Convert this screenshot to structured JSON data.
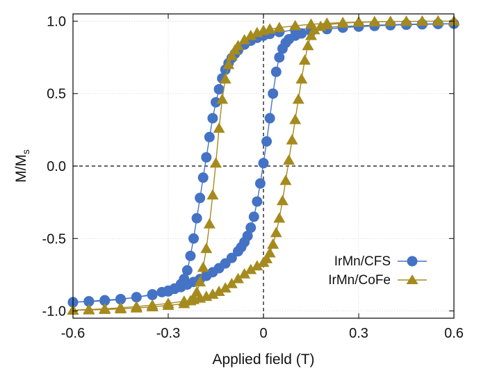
{
  "chart_data": {
    "type": "scatter",
    "xlabel": "Applied field (T)",
    "ylabel": "M/M",
    "ylabel_subscript": "s",
    "xlim": [
      -0.6,
      0.6
    ],
    "ylim": [
      -1.05,
      1.05
    ],
    "x_ticks": [
      {
        "value": -0.6,
        "label": "-0.6"
      },
      {
        "value": -0.3,
        "label": "-0.3"
      },
      {
        "value": 0.0,
        "label": "0"
      },
      {
        "value": 0.3,
        "label": "0.3"
      },
      {
        "value": 0.6,
        "label": "0.6"
      }
    ],
    "y_ticks": [
      {
        "value": -1.0,
        "label": "-1.0"
      },
      {
        "value": -0.5,
        "label": "-0.5"
      },
      {
        "value": 0.0,
        "label": "0.0"
      },
      {
        "value": 0.5,
        "label": "0.5"
      },
      {
        "value": 1.0,
        "label": "1.0"
      }
    ],
    "grid": true,
    "zero_lines": true,
    "legend_position": "bottom-right",
    "series": [
      {
        "name": "IrMn/CFS",
        "color": "#4472C4",
        "marker": "circle",
        "points": [
          [
            -0.6,
            -0.94
          ],
          [
            -0.55,
            -0.935
          ],
          [
            -0.5,
            -0.93
          ],
          [
            -0.45,
            -0.92
          ],
          [
            -0.4,
            -0.905
          ],
          [
            -0.35,
            -0.885
          ],
          [
            -0.32,
            -0.87
          ],
          [
            -0.3,
            -0.86
          ],
          [
            -0.28,
            -0.848
          ],
          [
            -0.26,
            -0.835
          ],
          [
            -0.24,
            -0.818
          ],
          [
            -0.22,
            -0.8
          ],
          [
            -0.2,
            -0.78
          ],
          [
            -0.18,
            -0.758
          ],
          [
            -0.16,
            -0.733
          ],
          [
            -0.14,
            -0.705
          ],
          [
            -0.12,
            -0.672
          ],
          [
            -0.1,
            -0.634
          ],
          [
            -0.08,
            -0.588
          ],
          [
            -0.07,
            -0.56
          ],
          [
            -0.06,
            -0.525
          ],
          [
            -0.05,
            -0.482
          ],
          [
            -0.04,
            -0.425
          ],
          [
            -0.03,
            -0.35
          ],
          [
            -0.02,
            -0.245
          ],
          [
            -0.01,
            -0.12
          ],
          [
            0.0,
            0.02
          ],
          [
            0.01,
            0.17
          ],
          [
            0.02,
            0.33
          ],
          [
            0.03,
            0.5
          ],
          [
            0.04,
            0.65
          ],
          [
            0.05,
            0.75
          ],
          [
            0.06,
            0.81
          ],
          [
            0.07,
            0.85
          ],
          [
            0.08,
            0.875
          ],
          [
            0.1,
            0.9
          ],
          [
            0.12,
            0.915
          ],
          [
            0.15,
            0.93
          ],
          [
            0.2,
            0.945
          ],
          [
            0.25,
            0.955
          ],
          [
            0.3,
            0.962
          ],
          [
            0.35,
            0.967
          ],
          [
            0.4,
            0.972
          ],
          [
            0.45,
            0.975
          ],
          [
            0.5,
            0.978
          ],
          [
            0.55,
            0.98
          ],
          [
            0.6,
            0.982
          ],
          [
            0.55,
            0.982
          ],
          [
            0.5,
            0.98
          ],
          [
            0.45,
            0.978
          ],
          [
            0.4,
            0.975
          ],
          [
            0.35,
            0.972
          ],
          [
            0.3,
            0.968
          ],
          [
            0.25,
            0.963
          ],
          [
            0.2,
            0.957
          ],
          [
            0.15,
            0.95
          ],
          [
            0.1,
            0.94
          ],
          [
            0.05,
            0.925
          ],
          [
            0.02,
            0.912
          ],
          [
            0.0,
            0.9
          ],
          [
            -0.02,
            0.885
          ],
          [
            -0.04,
            0.865
          ],
          [
            -0.06,
            0.838
          ],
          [
            -0.08,
            0.8
          ],
          [
            -0.09,
            0.775
          ],
          [
            -0.1,
            0.745
          ],
          [
            -0.11,
            0.71
          ],
          [
            -0.12,
            0.665
          ],
          [
            -0.13,
            0.605
          ],
          [
            -0.14,
            0.53
          ],
          [
            -0.15,
            0.44
          ],
          [
            -0.16,
            0.33
          ],
          [
            -0.17,
            0.2
          ],
          [
            -0.18,
            0.06
          ],
          [
            -0.19,
            -0.08
          ],
          [
            -0.2,
            -0.22
          ],
          [
            -0.21,
            -0.36
          ],
          [
            -0.22,
            -0.5
          ],
          [
            -0.23,
            -0.62
          ],
          [
            -0.24,
            -0.72
          ],
          [
            -0.25,
            -0.78
          ],
          [
            -0.26,
            -0.815
          ],
          [
            -0.28,
            -0.845
          ],
          [
            -0.3,
            -0.865
          ],
          [
            -0.35,
            -0.89
          ],
          [
            -0.4,
            -0.905
          ],
          [
            -0.45,
            -0.918
          ],
          [
            -0.5,
            -0.926
          ],
          [
            -0.55,
            -0.933
          ],
          [
            -0.6,
            -0.94
          ]
        ]
      },
      {
        "name": "IrMn/CoFe",
        "color": "#A58A1E",
        "marker": "triangle",
        "points": [
          [
            -0.6,
            -0.995
          ],
          [
            -0.55,
            -0.99
          ],
          [
            -0.5,
            -0.985
          ],
          [
            -0.45,
            -0.978
          ],
          [
            -0.4,
            -0.97
          ],
          [
            -0.35,
            -0.96
          ],
          [
            -0.3,
            -0.948
          ],
          [
            -0.25,
            -0.933
          ],
          [
            -0.22,
            -0.922
          ],
          [
            -0.2,
            -0.912
          ],
          [
            -0.18,
            -0.9
          ],
          [
            -0.16,
            -0.885
          ],
          [
            -0.14,
            -0.866
          ],
          [
            -0.12,
            -0.842
          ],
          [
            -0.1,
            -0.812
          ],
          [
            -0.08,
            -0.778
          ],
          [
            -0.06,
            -0.745
          ],
          [
            -0.04,
            -0.715
          ],
          [
            -0.02,
            -0.69
          ],
          [
            0.0,
            -0.665
          ],
          [
            0.01,
            -0.64
          ],
          [
            0.02,
            -0.6
          ],
          [
            0.03,
            -0.54
          ],
          [
            0.04,
            -0.46
          ],
          [
            0.05,
            -0.36
          ],
          [
            0.06,
            -0.24
          ],
          [
            0.07,
            -0.1
          ],
          [
            0.08,
            0.04
          ],
          [
            0.09,
            0.18
          ],
          [
            0.1,
            0.32
          ],
          [
            0.11,
            0.46
          ],
          [
            0.12,
            0.6
          ],
          [
            0.13,
            0.73
          ],
          [
            0.14,
            0.83
          ],
          [
            0.15,
            0.9
          ],
          [
            0.16,
            0.94
          ],
          [
            0.18,
            0.963
          ],
          [
            0.2,
            0.975
          ],
          [
            0.25,
            0.986
          ],
          [
            0.3,
            0.992
          ],
          [
            0.35,
            0.995
          ],
          [
            0.4,
            0.997
          ],
          [
            0.45,
            0.998
          ],
          [
            0.5,
            0.999
          ],
          [
            0.55,
            1.0
          ],
          [
            0.6,
            1.0
          ],
          [
            0.55,
            1.0
          ],
          [
            0.5,
            0.999
          ],
          [
            0.45,
            0.998
          ],
          [
            0.4,
            0.997
          ],
          [
            0.35,
            0.996
          ],
          [
            0.3,
            0.994
          ],
          [
            0.25,
            0.99
          ],
          [
            0.2,
            0.985
          ],
          [
            0.15,
            0.978
          ],
          [
            0.1,
            0.968
          ],
          [
            0.05,
            0.955
          ],
          [
            0.02,
            0.945
          ],
          [
            0.0,
            0.935
          ],
          [
            -0.02,
            0.92
          ],
          [
            -0.04,
            0.9
          ],
          [
            -0.06,
            0.87
          ],
          [
            -0.08,
            0.83
          ],
          [
            -0.09,
            0.8
          ],
          [
            -0.1,
            0.76
          ],
          [
            -0.11,
            0.7
          ],
          [
            -0.12,
            0.6
          ],
          [
            -0.13,
            0.46
          ],
          [
            -0.14,
            0.26
          ],
          [
            -0.15,
            0.02
          ],
          [
            -0.16,
            -0.2
          ],
          [
            -0.17,
            -0.4
          ],
          [
            -0.18,
            -0.57
          ],
          [
            -0.19,
            -0.7
          ],
          [
            -0.2,
            -0.8
          ],
          [
            -0.21,
            -0.87
          ],
          [
            -0.22,
            -0.91
          ],
          [
            -0.23,
            -0.93
          ],
          [
            -0.25,
            -0.95
          ],
          [
            -0.3,
            -0.962
          ],
          [
            -0.35,
            -0.972
          ],
          [
            -0.4,
            -0.98
          ],
          [
            -0.45,
            -0.986
          ],
          [
            -0.5,
            -0.99
          ],
          [
            -0.55,
            -0.993
          ],
          [
            -0.6,
            -0.995
          ]
        ]
      }
    ]
  }
}
